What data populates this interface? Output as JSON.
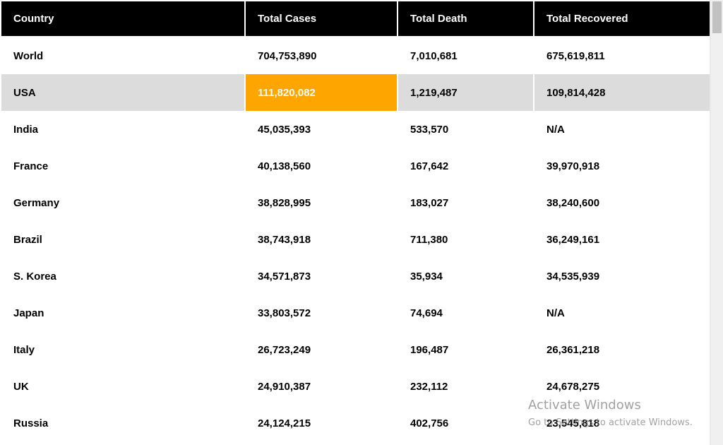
{
  "table": {
    "headers": [
      "Country",
      "Total Cases",
      "Total Death",
      "Total Recovered"
    ],
    "rows": [
      [
        "World",
        "704,753,890",
        "7,010,681",
        "675,619,811"
      ],
      [
        "USA",
        "111,820,082",
        "1,219,487",
        "109,814,428"
      ],
      [
        "India",
        "45,035,393",
        "533,570",
        "N/A"
      ],
      [
        "France",
        "40,138,560",
        "167,642",
        "39,970,918"
      ],
      [
        "Germany",
        "38,828,995",
        "183,027",
        "38,240,600"
      ],
      [
        "Brazil",
        "38,743,918",
        "711,380",
        "36,249,161"
      ],
      [
        "S. Korea",
        "34,571,873",
        "35,934",
        "34,535,939"
      ],
      [
        "Japan",
        "33,803,572",
        "74,694",
        "N/A"
      ],
      [
        "Italy",
        "26,723,249",
        "196,487",
        "26,361,218"
      ],
      [
        "UK",
        "24,910,387",
        "232,112",
        "24,678,275"
      ],
      [
        "Russia",
        "24,124,215",
        "402,756",
        "23,545,818"
      ]
    ]
  },
  "colors": {
    "header_bg": "#000000",
    "highlight_row_bg": "#dcdcdc",
    "highlight_cell_bg": "#ffa500"
  },
  "watermark": {
    "title": "Activate Windows",
    "subtitle": "Go to Settings to activate Windows."
  }
}
